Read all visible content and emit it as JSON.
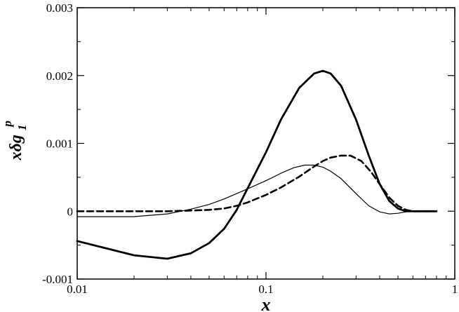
{
  "chart_data": {
    "type": "line",
    "xscale": "log",
    "xlim": [
      0.01,
      1
    ],
    "ylim": [
      -0.001,
      0.003
    ],
    "xlabel": "x",
    "ylabel_main": "xδg",
    "ylabel_sub": "1",
    "ylabel_sup": "p",
    "grid": false,
    "x_ticks": [
      0.01,
      0.1,
      1
    ],
    "x_tick_labels": [
      "0.01",
      "0.1",
      "1"
    ],
    "y_ticks": [
      -0.001,
      0,
      0.001,
      0.002,
      0.003
    ],
    "y_tick_labels": [
      "-0.001",
      "0",
      "0.001",
      "0.002",
      "0.003"
    ],
    "series": [
      {
        "style": "thick-solid",
        "x": [
          0.01,
          0.02,
          0.03,
          0.04,
          0.05,
          0.06,
          0.07,
          0.08,
          0.1,
          0.12,
          0.15,
          0.18,
          0.2,
          0.22,
          0.25,
          0.3,
          0.35,
          0.4,
          0.45,
          0.5,
          0.55,
          0.6,
          0.7,
          0.8
        ],
        "y": [
          -0.00044,
          -0.00065,
          -0.0007,
          -0.00062,
          -0.00047,
          -0.00026,
          2e-05,
          0.00034,
          0.00087,
          0.00135,
          0.00182,
          0.00203,
          0.00207,
          0.00203,
          0.00185,
          0.00135,
          0.00082,
          0.0004,
          0.00015,
          4e-05,
          0.0,
          0.0,
          0.0,
          0.0
        ]
      },
      {
        "style": "dashed",
        "x": [
          0.01,
          0.02,
          0.03,
          0.04,
          0.05,
          0.06,
          0.07,
          0.08,
          0.1,
          0.12,
          0.15,
          0.18,
          0.2,
          0.22,
          0.25,
          0.28,
          0.32,
          0.36,
          0.4,
          0.45,
          0.5,
          0.55,
          0.6,
          0.7,
          0.8
        ],
        "y": [
          0.0,
          0.0,
          0.0,
          1e-05,
          2e-05,
          4e-05,
          8e-05,
          0.00013,
          0.00024,
          0.00035,
          0.00051,
          0.00066,
          0.00074,
          0.00079,
          0.00082,
          0.00082,
          0.00074,
          0.00058,
          0.0004,
          0.0002,
          8e-05,
          2e-05,
          0.0,
          0.0,
          0.0
        ]
      },
      {
        "style": "thin-solid",
        "x": [
          0.01,
          0.02,
          0.03,
          0.04,
          0.05,
          0.06,
          0.07,
          0.08,
          0.1,
          0.12,
          0.14,
          0.16,
          0.18,
          0.2,
          0.22,
          0.25,
          0.3,
          0.35,
          0.4,
          0.45,
          0.5,
          0.55,
          0.6,
          0.7,
          0.8
        ],
        "y": [
          -8e-05,
          -8e-05,
          -4e-05,
          3e-05,
          0.0001,
          0.00018,
          0.00026,
          0.00033,
          0.00045,
          0.00056,
          0.00064,
          0.00068,
          0.00068,
          0.00065,
          0.00059,
          0.00048,
          0.00026,
          8e-05,
          -1e-05,
          -4e-05,
          -3e-05,
          -1e-05,
          0.0,
          0.0,
          0.0
        ]
      }
    ]
  }
}
